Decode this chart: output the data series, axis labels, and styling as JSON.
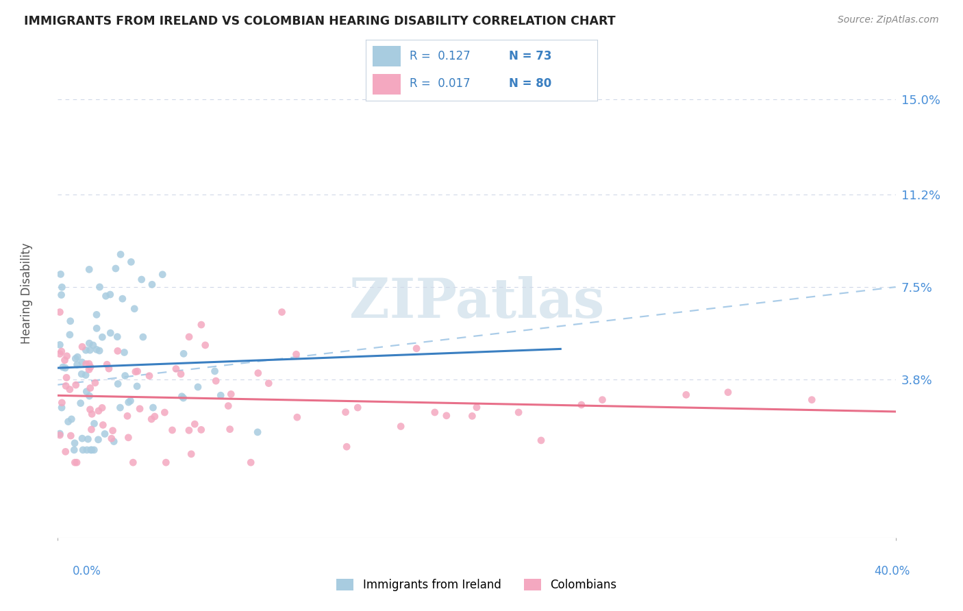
{
  "title": "IMMIGRANTS FROM IRELAND VS COLOMBIAN HEARING DISABILITY CORRELATION CHART",
  "source": "Source: ZipAtlas.com",
  "ylabel": "Hearing Disability",
  "ytick_values": [
    0.15,
    0.112,
    0.075,
    0.038
  ],
  "ytick_labels": [
    "15.0%",
    "11.2%",
    "7.5%",
    "3.8%"
  ],
  "xlim": [
    0.0,
    0.4
  ],
  "ylim": [
    -0.025,
    0.17
  ],
  "legend_ireland_r": "0.127",
  "legend_ireland_n": "73",
  "legend_colombia_r": "0.017",
  "legend_colombia_n": "80",
  "color_ireland": "#a8cce0",
  "color_colombia": "#f4a8c0",
  "color_trendline_ireland": "#3a7fc1",
  "color_trendline_colombia": "#e8708a",
  "color_trendline_dashed": "#aacce8",
  "color_r_value": "#3a7fc1",
  "color_n_value": "#e05010",
  "background_color": "#ffffff",
  "grid_color": "#d0d8e8",
  "watermark_color": "#dce8f0",
  "title_color": "#222222",
  "source_color": "#888888",
  "axis_label_color": "#555555",
  "tick_color": "#4a90d9",
  "bottom_legend_labels": [
    "Immigrants from Ireland",
    "Colombians"
  ]
}
